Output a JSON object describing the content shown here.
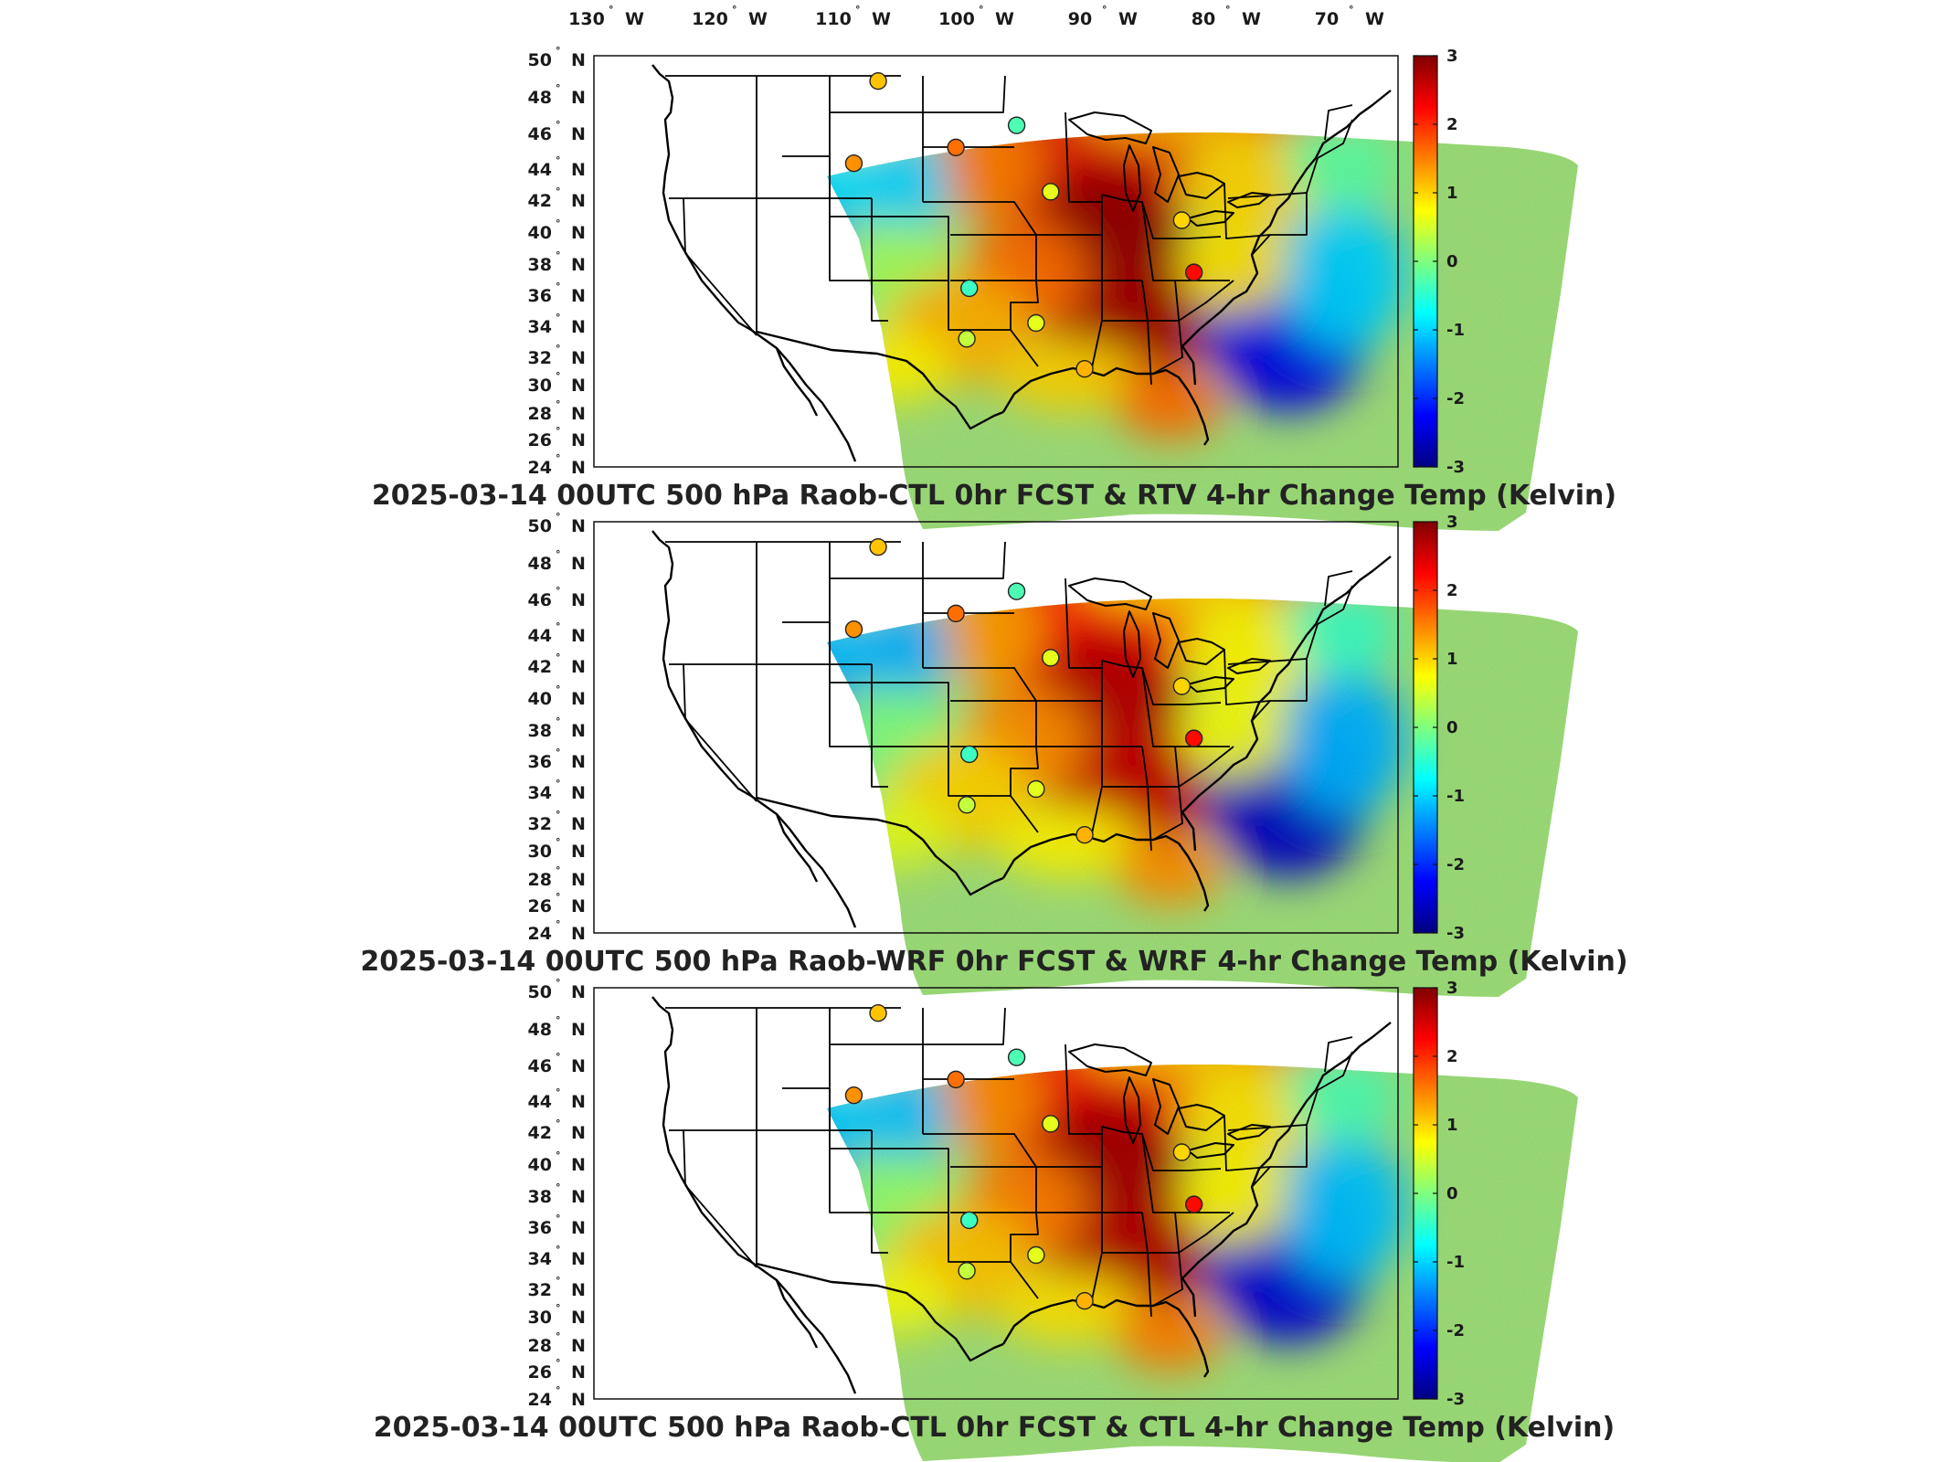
{
  "longitude_labels": [
    "130",
    "120",
    "110",
    "100",
    "90",
    "80",
    "70"
  ],
  "longitude_suffix": "W",
  "latitude_labels": [
    "50",
    "48",
    "46",
    "44",
    "42",
    "40",
    "38",
    "36",
    "34",
    "32",
    "30",
    "28",
    "26",
    "24"
  ],
  "latitude_suffix": "N",
  "degree_symbol": "°",
  "colorbar": {
    "ticks": [
      "3",
      "2",
      "1",
      "0",
      "-1",
      "-2",
      "-3"
    ],
    "range": [
      -3,
      3
    ],
    "colormap": "jet"
  },
  "panels": [
    {
      "title": "2025-03-14 00UTC 500 hPa Raob-CTL 0hr FCST & RTV 4-hr Change Temp (Kelvin)"
    },
    {
      "title": "2025-03-14 00UTC 500 hPa Raob-WRF 0hr FCST & WRF 4-hr Change Temp (Kelvin)"
    },
    {
      "title": "2025-03-14 00UTC 500 hPa Raob-CTL 0hr FCST & CTL 4-hr Change Temp (Kelvin)"
    }
  ],
  "raob_stations": [
    {
      "lon": -111.0,
      "lat": 48.4,
      "value": 1.1
    },
    {
      "lon": -104.6,
      "lat": 44.2,
      "value": 1.6
    },
    {
      "lon": -113.0,
      "lat": 43.2,
      "value": 1.4
    },
    {
      "lon": -99.6,
      "lat": 45.6,
      "value": -0.3
    },
    {
      "lon": -96.8,
      "lat": 41.4,
      "value": 0.6
    },
    {
      "lon": -86.0,
      "lat": 39.6,
      "value": 1.0
    },
    {
      "lon": -85.0,
      "lat": 36.3,
      "value": 2.2
    },
    {
      "lon": -103.5,
      "lat": 35.3,
      "value": -0.4
    },
    {
      "lon": -98.0,
      "lat": 33.1,
      "value": 0.6
    },
    {
      "lon": -103.7,
      "lat": 32.1,
      "value": 0.4
    },
    {
      "lon": -94.0,
      "lat": 30.2,
      "value": 1.2
    }
  ],
  "colors": {
    "frame": "#111111",
    "land_outline": "#000000",
    "background": "#ffffff"
  }
}
